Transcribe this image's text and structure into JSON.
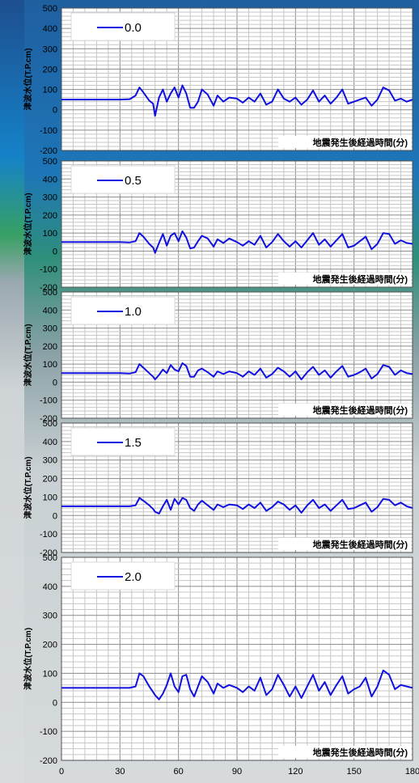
{
  "chart_data": [
    {
      "type": "line",
      "legend": "0.0",
      "xlabel": "地震発生後経過時間(分)",
      "ylabel": "津波水位(T.P.cm)",
      "xlim": [
        0,
        180
      ],
      "ylim": [
        -200,
        500
      ],
      "yticks": [
        -200,
        -100,
        0,
        100,
        200,
        300,
        400,
        500
      ],
      "grid": true,
      "legend_position": "top-left",
      "color": "#1010e0",
      "x": [
        0,
        10,
        20,
        30,
        35,
        38,
        40,
        42,
        45,
        47,
        48,
        50,
        52,
        54,
        56,
        58,
        60,
        62,
        64,
        66,
        68,
        70,
        72,
        75,
        78,
        80,
        83,
        86,
        90,
        93,
        96,
        99,
        102,
        105,
        108,
        111,
        114,
        117,
        120,
        123,
        126,
        129,
        132,
        135,
        138,
        141,
        144,
        147,
        150,
        153,
        156,
        159,
        162,
        165,
        168,
        171,
        174,
        177,
        180
      ],
      "values": [
        50,
        50,
        50,
        50,
        52,
        70,
        110,
        85,
        45,
        30,
        -30,
        60,
        100,
        40,
        80,
        110,
        60,
        120,
        80,
        10,
        10,
        40,
        100,
        75,
        20,
        70,
        40,
        60,
        55,
        35,
        60,
        40,
        80,
        25,
        40,
        100,
        55,
        40,
        60,
        25,
        50,
        95,
        40,
        70,
        30,
        60,
        100,
        30,
        40,
        50,
        60,
        20,
        50,
        110,
        95,
        45,
        55,
        40,
        50
      ]
    },
    {
      "type": "line",
      "legend": "0.5",
      "xlabel": "地震発生後経過時間(分)",
      "ylabel": "津波水位(T.P.cm)",
      "xlim": [
        0,
        180
      ],
      "ylim": [
        -200,
        500
      ],
      "yticks": [
        -200,
        -100,
        0,
        100,
        200,
        300,
        400,
        500
      ],
      "grid": true,
      "legend_position": "top-left",
      "color": "#1010e0",
      "x": [
        0,
        10,
        20,
        30,
        35,
        38,
        40,
        42,
        45,
        47,
        48,
        50,
        52,
        54,
        56,
        58,
        60,
        62,
        64,
        66,
        68,
        70,
        72,
        75,
        78,
        80,
        83,
        86,
        90,
        93,
        96,
        99,
        102,
        105,
        108,
        111,
        114,
        117,
        120,
        123,
        126,
        129,
        132,
        135,
        138,
        141,
        144,
        147,
        150,
        153,
        156,
        159,
        162,
        165,
        168,
        171,
        174,
        177,
        180
      ],
      "values": [
        50,
        50,
        50,
        50,
        48,
        55,
        100,
        80,
        40,
        20,
        -10,
        45,
        95,
        30,
        85,
        100,
        55,
        110,
        75,
        15,
        20,
        55,
        85,
        70,
        25,
        65,
        45,
        70,
        50,
        30,
        55,
        35,
        85,
        20,
        50,
        95,
        55,
        25,
        55,
        20,
        60,
        100,
        35,
        65,
        25,
        60,
        95,
        20,
        30,
        55,
        80,
        10,
        40,
        100,
        95,
        40,
        60,
        45,
        40
      ]
    },
    {
      "type": "line",
      "legend": "1.0",
      "xlabel": "地震発生後経過時間(分)",
      "ylabel": "津波水位(T.P.cm)",
      "xlim": [
        0,
        180
      ],
      "ylim": [
        -200,
        500
      ],
      "yticks": [
        -200,
        -100,
        0,
        100,
        200,
        300,
        400,
        500
      ],
      "grid": true,
      "legend_position": "top-left",
      "color": "#1010e0",
      "x": [
        0,
        10,
        20,
        30,
        35,
        38,
        40,
        42,
        45,
        47,
        48,
        50,
        52,
        54,
        56,
        58,
        60,
        62,
        64,
        66,
        68,
        70,
        72,
        75,
        78,
        80,
        83,
        86,
        90,
        93,
        96,
        99,
        102,
        105,
        108,
        111,
        114,
        117,
        120,
        123,
        126,
        129,
        132,
        135,
        138,
        141,
        144,
        147,
        150,
        153,
        156,
        159,
        162,
        165,
        168,
        171,
        174,
        177,
        180
      ],
      "values": [
        50,
        50,
        50,
        50,
        48,
        55,
        100,
        80,
        50,
        30,
        15,
        40,
        70,
        50,
        95,
        70,
        60,
        105,
        90,
        30,
        30,
        65,
        75,
        55,
        30,
        60,
        45,
        60,
        50,
        30,
        60,
        40,
        75,
        25,
        45,
        80,
        60,
        30,
        60,
        15,
        55,
        85,
        40,
        65,
        25,
        60,
        90,
        30,
        40,
        55,
        75,
        20,
        45,
        95,
        85,
        40,
        65,
        50,
        45
      ]
    },
    {
      "type": "line",
      "legend": "1.5",
      "xlabel": "地震発生後経過時間(分)",
      "ylabel": "津波水位(T.P.cm)",
      "xlim": [
        0,
        180
      ],
      "ylim": [
        -200,
        500
      ],
      "yticks": [
        -200,
        -100,
        0,
        100,
        200,
        300,
        400,
        500
      ],
      "grid": true,
      "legend_position": "top-left",
      "color": "#1010e0",
      "x": [
        0,
        10,
        20,
        30,
        35,
        38,
        40,
        42,
        45,
        47,
        48,
        50,
        52,
        54,
        56,
        58,
        60,
        62,
        64,
        66,
        68,
        70,
        72,
        75,
        78,
        80,
        83,
        86,
        90,
        93,
        96,
        99,
        102,
        105,
        108,
        111,
        114,
        117,
        120,
        123,
        126,
        129,
        132,
        135,
        138,
        141,
        144,
        147,
        150,
        153,
        156,
        159,
        162,
        165,
        168,
        171,
        174,
        177,
        180
      ],
      "values": [
        50,
        50,
        50,
        50,
        50,
        55,
        95,
        80,
        55,
        35,
        20,
        10,
        50,
        85,
        30,
        90,
        60,
        95,
        85,
        40,
        25,
        60,
        80,
        55,
        30,
        60,
        45,
        60,
        55,
        35,
        60,
        40,
        70,
        25,
        45,
        75,
        60,
        30,
        55,
        15,
        55,
        85,
        40,
        60,
        25,
        55,
        85,
        35,
        40,
        55,
        70,
        20,
        45,
        90,
        85,
        55,
        70,
        50,
        40
      ]
    },
    {
      "type": "line",
      "legend": "2.0",
      "xlabel": "地震発生後経過時間(分)",
      "ylabel": "津波水位(T.P.cm)",
      "xlim": [
        0,
        180
      ],
      "ylim": [
        -200,
        500
      ],
      "yticks": [
        -200,
        -100,
        0,
        100,
        200,
        300,
        400,
        500
      ],
      "xticks": [
        0,
        30,
        60,
        90,
        120,
        150,
        180
      ],
      "grid": true,
      "legend_position": "top-left",
      "color": "#1010e0",
      "x": [
        0,
        10,
        20,
        30,
        35,
        38,
        40,
        42,
        45,
        47,
        48,
        50,
        52,
        54,
        56,
        58,
        60,
        62,
        64,
        66,
        68,
        70,
        72,
        75,
        78,
        80,
        83,
        86,
        90,
        93,
        96,
        99,
        102,
        105,
        108,
        111,
        114,
        117,
        120,
        123,
        126,
        129,
        132,
        135,
        138,
        141,
        144,
        147,
        150,
        153,
        156,
        159,
        162,
        165,
        168,
        171,
        174,
        177,
        180
      ],
      "values": [
        50,
        50,
        50,
        50,
        50,
        55,
        100,
        90,
        55,
        35,
        25,
        10,
        30,
        60,
        100,
        55,
        35,
        90,
        95,
        45,
        20,
        55,
        90,
        70,
        30,
        65,
        50,
        60,
        50,
        35,
        55,
        40,
        85,
        25,
        45,
        95,
        60,
        20,
        55,
        15,
        55,
        95,
        40,
        70,
        25,
        60,
        90,
        30,
        45,
        55,
        85,
        20,
        55,
        110,
        95,
        45,
        60,
        55,
        50
      ]
    }
  ]
}
